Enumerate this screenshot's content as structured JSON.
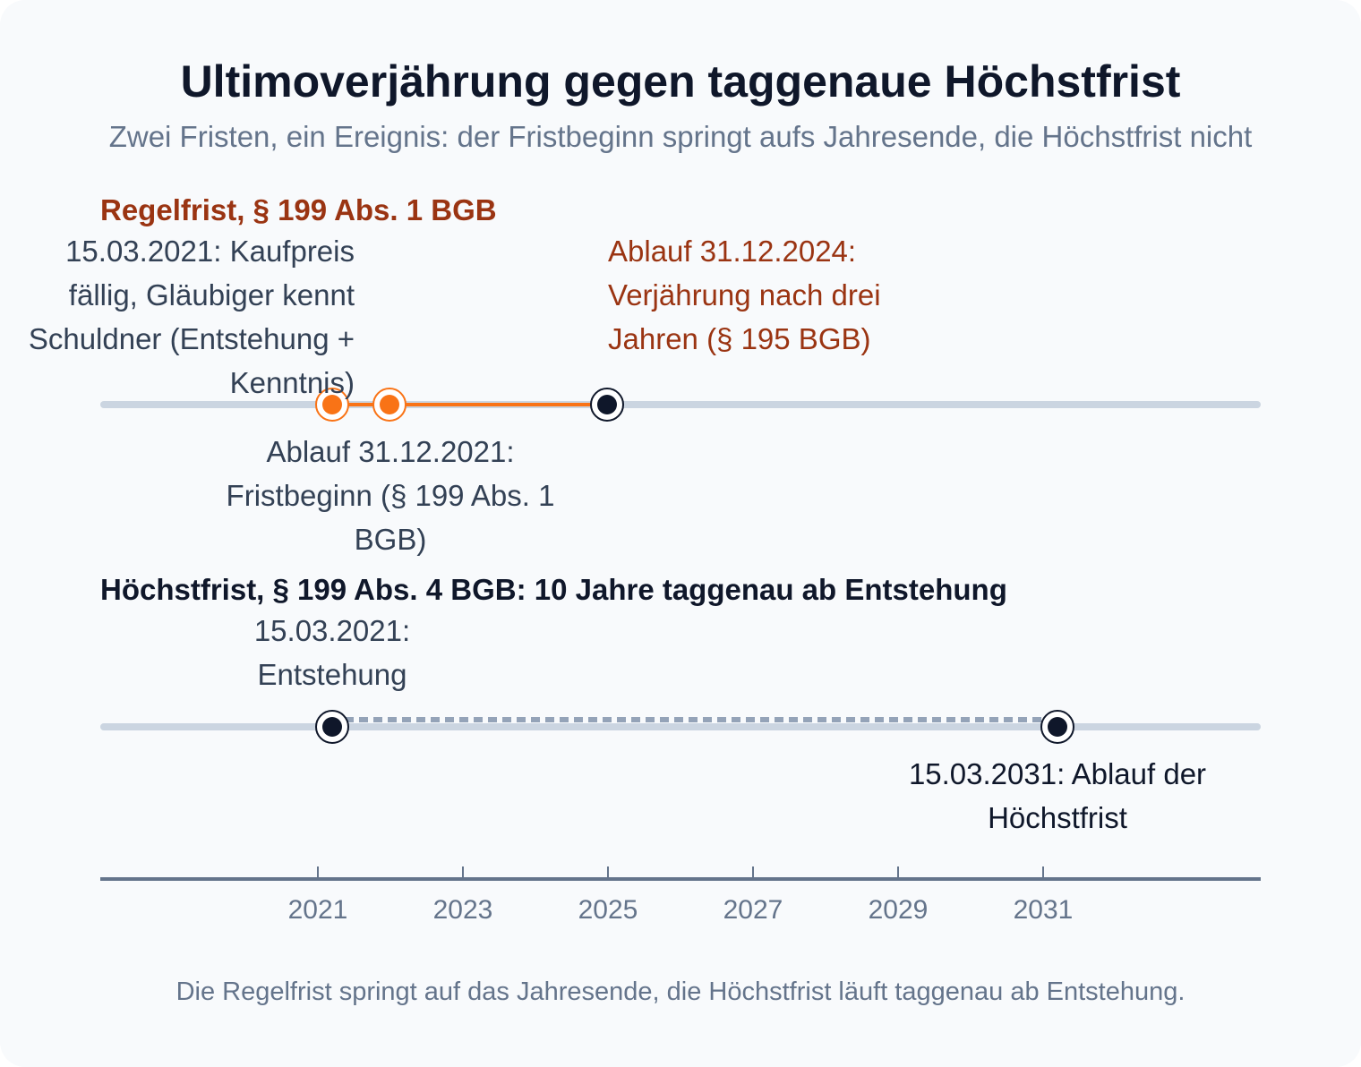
{
  "title": "Ultimoverjährung gegen taggenaue Höchstfrist",
  "subtitle": "Zwei Fristen, ein Ereignis: der Fristbeginn springt aufs Jahresende, die Höchstfrist nicht",
  "lanes": [
    {
      "title": "Regelfrist, § 199 Abs. 1 BGB",
      "color": "#9a3412",
      "accent": "#f97316",
      "events": [
        {
          "date": "2021-03-15",
          "label": "15.03.2021: Kaufpreis fällig, Gläubiger kennt Schuldner (Entstehung + Kenntnis)",
          "marker": "orange"
        },
        {
          "date": "2021-12-31",
          "label": "Ablauf 31.12.2021: Fristbeginn (§ 199 Abs. 1 BGB)",
          "marker": "orange"
        },
        {
          "date": "2024-12-31",
          "label": "Ablauf 31.12.2024: Verjährung nach drei Jahren (§ 195 BGB)",
          "marker": "dark"
        }
      ]
    },
    {
      "title": "Höchstfrist, § 199 Abs. 4 BGB: 10 Jahre taggenau ab Entstehung",
      "color": "#0f172a",
      "accent": "#94a3b8",
      "events": [
        {
          "date": "2021-03-15",
          "label": "15.03.2021: Entstehung",
          "marker": "dark"
        },
        {
          "date": "2031-03-15",
          "label": "15.03.2031: Ablauf der Höchstfrist",
          "marker": "dark"
        }
      ]
    }
  ],
  "axis": {
    "ticks": [
      "2021",
      "2023",
      "2025",
      "2027",
      "2029",
      "2031"
    ]
  },
  "footer": "Die Regelfrist springt auf das Jahresende, die Höchstfrist läuft taggenau ab Entstehung."
}
